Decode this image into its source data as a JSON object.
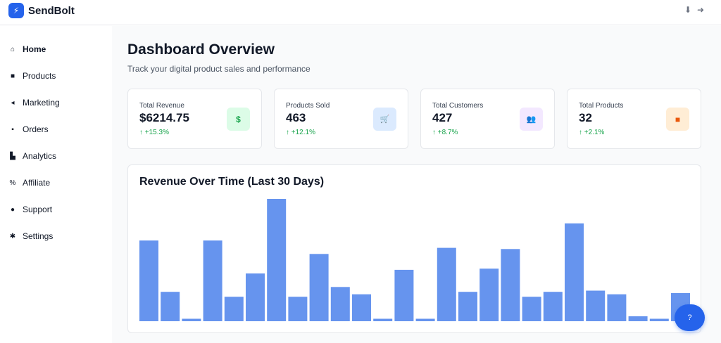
{
  "app": {
    "brand": "SendBolt",
    "logo_icon": "bolt-icon"
  },
  "header": {
    "icons": [
      "download-icon",
      "logout-icon"
    ]
  },
  "sidebar": {
    "items": [
      {
        "label": "Home",
        "icon": "home-icon",
        "glyph": "⌂",
        "active": true
      },
      {
        "label": "Products",
        "icon": "box-icon",
        "glyph": "■",
        "active": false
      },
      {
        "label": "Marketing",
        "icon": "megaphone-icon",
        "glyph": "◂",
        "active": false
      },
      {
        "label": "Orders",
        "icon": "bag-icon",
        "glyph": "▪",
        "active": false
      },
      {
        "label": "Analytics",
        "icon": "chart-icon",
        "glyph": "▙",
        "active": false
      },
      {
        "label": "Affiliate",
        "icon": "percent-icon",
        "glyph": "%",
        "active": false
      },
      {
        "label": "Support",
        "icon": "chat-icon",
        "glyph": "●",
        "active": false
      },
      {
        "label": "Settings",
        "icon": "gear-icon",
        "glyph": "✱",
        "active": false
      }
    ]
  },
  "main": {
    "title": "Dashboard Overview",
    "subtitle": "Track your digital product sales and performance",
    "cards": [
      {
        "label": "Total Revenue",
        "value": "$6214.75",
        "change": "+15.3%",
        "icon": "dollar-icon",
        "glyph": "$",
        "icon_bg": "#dcfce7",
        "icon_color": "#16a34a"
      },
      {
        "label": "Products Sold",
        "value": "463",
        "change": "+12.1%",
        "icon": "cart-icon",
        "glyph": "🛒",
        "icon_bg": "#dbeafe",
        "icon_color": "#2563eb"
      },
      {
        "label": "Total Customers",
        "value": "427",
        "change": "+8.7%",
        "icon": "users-icon",
        "glyph": "👥",
        "icon_bg": "#f3e8ff",
        "icon_color": "#9333ea"
      },
      {
        "label": "Total Products",
        "value": "32",
        "change": "+2.1%",
        "icon": "box-icon",
        "glyph": "■",
        "icon_bg": "#ffedd5",
        "icon_color": "#ea580c"
      }
    ]
  },
  "chart_data": {
    "type": "bar",
    "title": "Revenue Over Time (Last 30 Days)",
    "values": [
      0.66,
      0.24,
      0.02,
      0.66,
      0.2,
      0.39,
      1.0,
      0.2,
      0.55,
      0.28,
      0.22,
      0.02,
      0.42,
      0.02,
      0.6,
      0.24,
      0.43,
      0.59,
      0.2,
      0.24,
      0.8,
      0.25,
      0.22,
      0.04,
      0.02,
      0.23
    ],
    "bar_color": "#6694ee",
    "grid": false,
    "legend": "none"
  },
  "help": {
    "icon": "help-icon",
    "glyph": "?"
  }
}
